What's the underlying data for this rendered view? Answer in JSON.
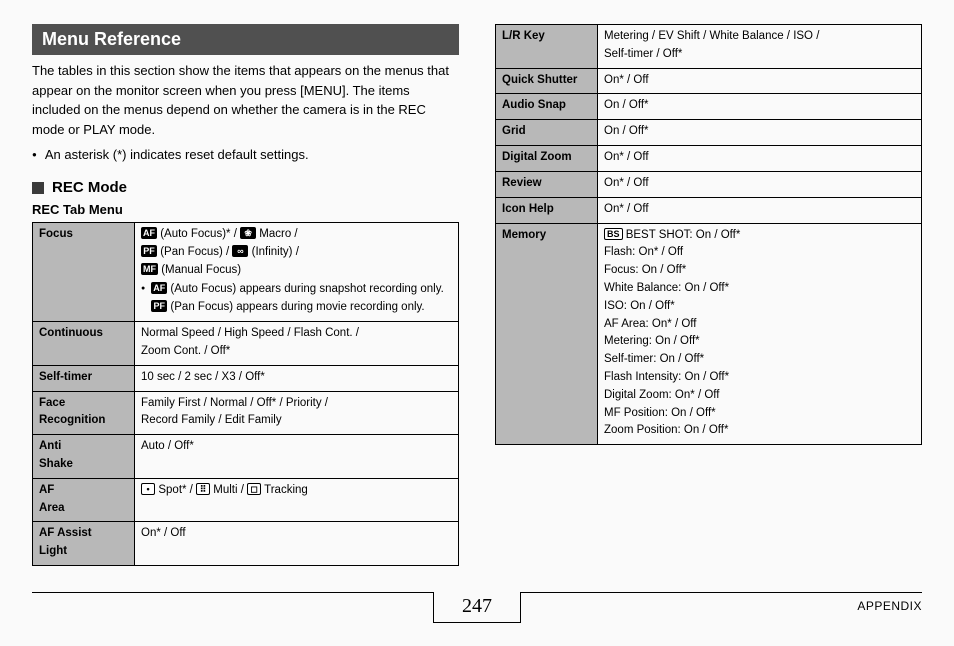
{
  "header": {
    "title": "Menu Reference"
  },
  "intro": "The tables in this section show the items that appears on the menus that appear on the monitor screen when you press [MENU]. The items included on the menus depend on whether the camera is in the REC mode or PLAY mode.",
  "bullet": "An asterisk (*) indicates reset default settings.",
  "section": "REC Mode",
  "subheading": "REC Tab Menu",
  "icons": {
    "af": "AF",
    "macro": "❀",
    "pf": "PF",
    "inf": "∞",
    "mf": "MF",
    "spot": "▪",
    "multi": "⁝⁝⁝",
    "track": "▣",
    "bs": "BS"
  },
  "left_table": [
    {
      "label": "Focus",
      "type": "focus"
    },
    {
      "label": "Continuous",
      "lines": [
        "Normal Speed / High Speed / Flash Cont. /",
        "Zoom Cont. / Off*"
      ]
    },
    {
      "label": "Self-timer",
      "lines": [
        "10 sec / 2 sec / X3 / Off*"
      ]
    },
    {
      "label": "Face Recognition",
      "lines": [
        "Family First / Normal / Off* / Priority /",
        "Record Family / Edit Family"
      ]
    },
    {
      "label": "Anti Shake",
      "lines": [
        "Auto / Off*"
      ]
    },
    {
      "label": "AF Area",
      "type": "afarea"
    },
    {
      "label": "AF Assist Light",
      "lines": [
        "On* / Off"
      ]
    }
  ],
  "focus_text": {
    "l1a": " (Auto Focus)* / ",
    "l1b": " Macro /",
    "l2a": " (Pan Focus) / ",
    "l2b": " (Infinity) /",
    "l3": " (Manual Focus)",
    "n1": " (Auto Focus) appears during snapshot recording only. ",
    "n2": " (Pan Focus) appears during movie recording only."
  },
  "afarea_text": {
    "a": " Spot* / ",
    "b": " Multi / ",
    "c": " Tracking"
  },
  "right_table": [
    {
      "label": "L/R Key",
      "lines": [
        "Metering / EV Shift / White Balance / ISO /",
        "Self-timer / Off*"
      ]
    },
    {
      "label": "Quick Shutter",
      "lines": [
        "On* / Off"
      ]
    },
    {
      "label": "Audio Snap",
      "lines": [
        "On / Off*"
      ]
    },
    {
      "label": "Grid",
      "lines": [
        "On / Off*"
      ]
    },
    {
      "label": "Digital Zoom",
      "lines": [
        "On* / Off"
      ]
    },
    {
      "label": "Review",
      "lines": [
        "On* / Off"
      ]
    },
    {
      "label": "Icon Help",
      "lines": [
        "On* / Off"
      ]
    },
    {
      "label": "Memory",
      "type": "memory"
    }
  ],
  "memory_lines": [
    " BEST SHOT: On / Off*",
    "Flash: On* / Off",
    "Focus: On / Off*",
    "White Balance: On / Off*",
    "ISO: On / Off*",
    "AF Area: On* / Off",
    "Metering: On / Off*",
    "Self-timer: On / Off*",
    "Flash Intensity: On / Off*",
    "Digital Zoom: On* / Off",
    "MF Position: On / Off*",
    "Zoom Position: On / Off*"
  ],
  "footer": {
    "page": "247",
    "section": "APPENDIX"
  }
}
